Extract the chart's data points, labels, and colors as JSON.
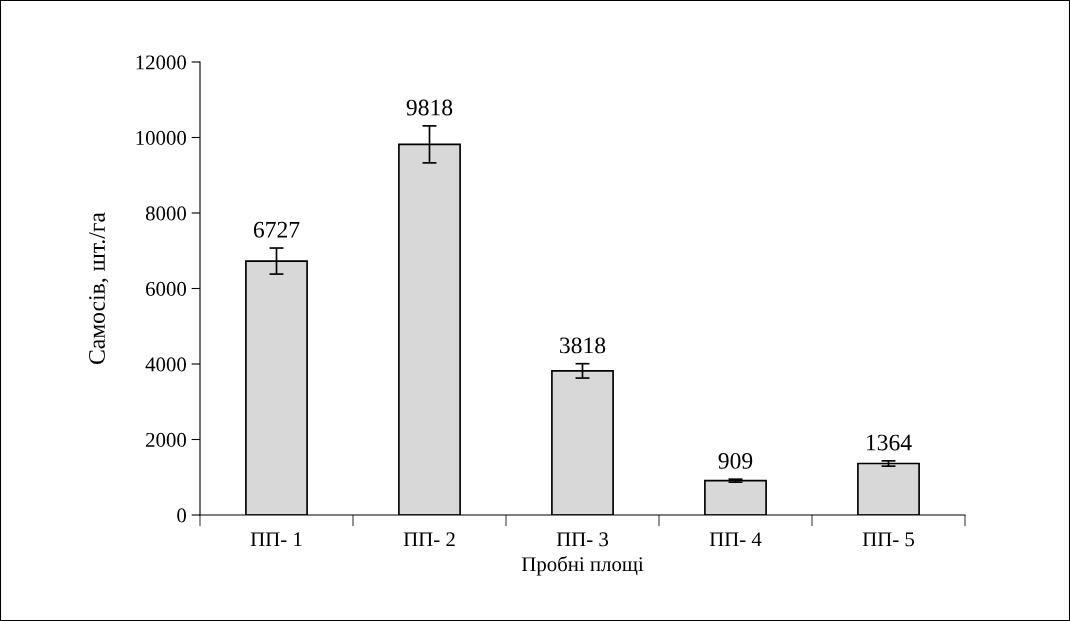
{
  "chart_data": {
    "type": "bar",
    "xlabel": "Пробні площі",
    "ylabel": "Самосів, шт./га",
    "categories": [
      "ПП- 1",
      "ПП- 2",
      "ПП- 3",
      "ПП- 4",
      "ПП- 5"
    ],
    "values": [
      6727,
      9818,
      3818,
      909,
      1364
    ],
    "errors": [
      345,
      490,
      190,
      40,
      70
    ],
    "color": "#d8d8d8",
    "ylim": [
      0,
      12000
    ],
    "yticks": [
      0,
      2000,
      4000,
      6000,
      8000,
      10000,
      12000
    ],
    "data_labels": true,
    "grid": false,
    "legend": false
  }
}
